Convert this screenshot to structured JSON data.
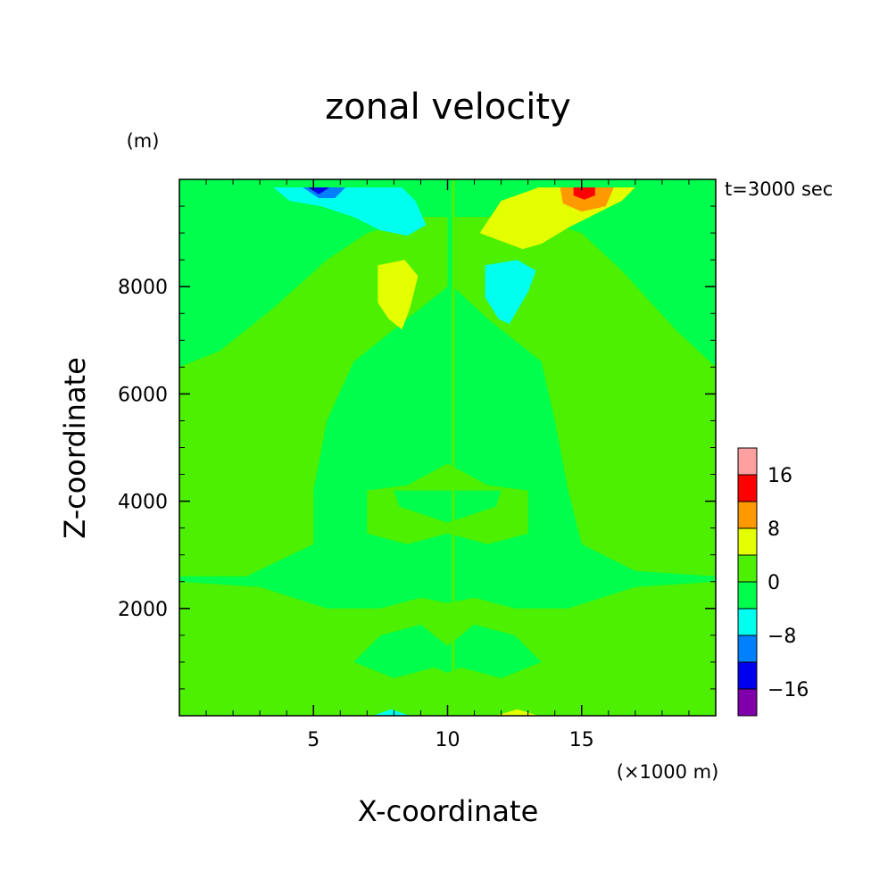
{
  "chart_data": {
    "type": "heatmap",
    "title": "zonal velocity",
    "xlabel": "X-coordinate",
    "ylabel": "Z-coordinate",
    "x_unit": "(×1000 m)",
    "y_unit": "(m)",
    "time_label": "t=3000 sec",
    "xlim": [
      0,
      20
    ],
    "ylim": [
      0,
      10000
    ],
    "x_ticks": [
      5,
      10,
      15
    ],
    "y_ticks": [
      2000,
      4000,
      6000,
      8000
    ],
    "x_tick_labels": [
      "5",
      "10",
      "15"
    ],
    "y_tick_labels": [
      "2000",
      "4000",
      "6000",
      "8000"
    ],
    "background_color": "#00ff4c",
    "colorbar": {
      "levels": [
        {
          "range": [
            -24,
            -16
          ],
          "color": "#7f00aa"
        },
        {
          "range": [
            -16,
            -12
          ],
          "color": "#0000ee"
        },
        {
          "range": [
            -12,
            -8
          ],
          "color": "#0080ff"
        },
        {
          "range": [
            -8,
            -4
          ],
          "color": "#00ffee"
        },
        {
          "range": [
            -4,
            0
          ],
          "color": "#00ff4c"
        },
        {
          "range": [
            0,
            4
          ],
          "color": "#4cf000"
        },
        {
          "range": [
            4,
            8
          ],
          "color": "#e4ff00"
        },
        {
          "range": [
            8,
            12
          ],
          "color": "#ff9900"
        },
        {
          "range": [
            12,
            16
          ],
          "color": "#ff0000"
        },
        {
          "range": [
            16,
            24
          ],
          "color": "#ffa0a0"
        }
      ],
      "tick_labels": [
        {
          "value": -16,
          "label": "−16"
        },
        {
          "value": -8,
          "label": "−8"
        },
        {
          "value": 0,
          "label": "0"
        },
        {
          "value": 8,
          "label": "8"
        },
        {
          "value": 16,
          "label": "16"
        }
      ]
    },
    "regions": [
      {
        "value": 2,
        "color": "#4cf000",
        "points": [
          [
            0,
            6500
          ],
          [
            1.5,
            6800
          ],
          [
            3.5,
            7600
          ],
          [
            5.5,
            8500
          ],
          [
            7,
            9000
          ],
          [
            9,
            9300
          ],
          [
            10,
            9300
          ],
          [
            10,
            8000
          ],
          [
            8.5,
            7400
          ],
          [
            6.5,
            6600
          ],
          [
            5.5,
            5500
          ],
          [
            5,
            4200
          ],
          [
            5,
            3200
          ],
          [
            2.5,
            2600
          ],
          [
            0,
            2600
          ]
        ]
      },
      {
        "value": 2,
        "color": "#4cf000",
        "points": [
          [
            10.2,
            9300
          ],
          [
            13,
            9300
          ],
          [
            15,
            9000
          ],
          [
            16.5,
            8300
          ],
          [
            18.5,
            7200
          ],
          [
            20,
            6500
          ],
          [
            20,
            2600
          ],
          [
            17,
            2700
          ],
          [
            15,
            3200
          ],
          [
            14.5,
            4200
          ],
          [
            14,
            5500
          ],
          [
            13.5,
            6600
          ],
          [
            11.5,
            7400
          ],
          [
            10.2,
            8000
          ]
        ]
      },
      {
        "value": 2,
        "color": "#4cf000",
        "points": [
          [
            0,
            2500
          ],
          [
            3,
            2400
          ],
          [
            5.5,
            2000
          ],
          [
            7.5,
            2000
          ],
          [
            9,
            2200
          ],
          [
            10,
            2100
          ],
          [
            11,
            2200
          ],
          [
            12.5,
            2000
          ],
          [
            14.5,
            2000
          ],
          [
            17,
            2400
          ],
          [
            20,
            2500
          ],
          [
            20,
            0
          ],
          [
            0,
            0
          ]
        ]
      },
      {
        "value": 2,
        "color": "#4cf000",
        "points": [
          [
            7,
            3400
          ],
          [
            8.5,
            3200
          ],
          [
            10,
            3400
          ],
          [
            11.5,
            3200
          ],
          [
            13,
            3400
          ],
          [
            13,
            4200
          ],
          [
            11.5,
            4300
          ],
          [
            10,
            4700
          ],
          [
            8.5,
            4300
          ],
          [
            7,
            4200
          ]
        ]
      },
      {
        "value": -2,
        "color": "#00ff4c",
        "points": [
          [
            6.5,
            1000
          ],
          [
            8,
            700
          ],
          [
            9.5,
            900
          ],
          [
            10,
            800
          ],
          [
            10.5,
            900
          ],
          [
            12,
            700
          ],
          [
            13.5,
            1000
          ],
          [
            12.5,
            1500
          ],
          [
            11,
            1700
          ],
          [
            10,
            1300
          ],
          [
            9,
            1700
          ],
          [
            7.5,
            1500
          ]
        ]
      },
      {
        "value": -2,
        "color": "#00ff4c",
        "points": [
          [
            6.8,
            5000
          ],
          [
            7.5,
            6200
          ],
          [
            8.8,
            7100
          ],
          [
            10,
            7000
          ],
          [
            11.2,
            7100
          ],
          [
            12.5,
            6200
          ],
          [
            13.2,
            5000
          ],
          [
            12,
            5000
          ],
          [
            11,
            5600
          ],
          [
            10,
            5200
          ],
          [
            9,
            5600
          ],
          [
            8,
            5000
          ]
        ]
      },
      {
        "value": -2,
        "color": "#00ff4c",
        "points": [
          [
            8.2,
            3900
          ],
          [
            10,
            3600
          ],
          [
            11.8,
            3900
          ],
          [
            12,
            4200
          ],
          [
            10,
            4200
          ],
          [
            8,
            4200
          ]
        ]
      },
      {
        "value": 5,
        "color": "#e4ff00",
        "points": [
          [
            7.4,
            8400
          ],
          [
            8.4,
            8500
          ],
          [
            8.9,
            8200
          ],
          [
            8.6,
            7600
          ],
          [
            8.3,
            7200
          ],
          [
            7.8,
            7400
          ],
          [
            7.4,
            7700
          ]
        ]
      },
      {
        "value": 5,
        "color": "#e4ff00",
        "points": [
          [
            11.2,
            9000
          ],
          [
            12.8,
            8700
          ],
          [
            13.5,
            8800
          ],
          [
            14.5,
            9100
          ],
          [
            16.5,
            9600
          ],
          [
            17,
            9850
          ],
          [
            13.4,
            9850
          ],
          [
            12,
            9600
          ]
        ]
      },
      {
        "value": 5,
        "color": "#e4ff00",
        "points": [
          [
            11.8,
            0
          ],
          [
            12.6,
            120
          ],
          [
            13.4,
            0
          ]
        ]
      },
      {
        "value": 10,
        "color": "#ff9900",
        "points": [
          [
            14.3,
            9550
          ],
          [
            15,
            9400
          ],
          [
            15.9,
            9500
          ],
          [
            16.2,
            9850
          ],
          [
            14.2,
            9850
          ]
        ]
      },
      {
        "value": 14,
        "color": "#ff0000",
        "points": [
          [
            14.7,
            9700
          ],
          [
            15.1,
            9620
          ],
          [
            15.5,
            9700
          ],
          [
            15.5,
            9850
          ],
          [
            14.7,
            9850
          ]
        ]
      },
      {
        "value": -5,
        "color": "#00ffee",
        "points": [
          [
            3.5,
            9850
          ],
          [
            4.1,
            9600
          ],
          [
            5.3,
            9500
          ],
          [
            6.5,
            9300
          ],
          [
            7.5,
            9050
          ],
          [
            8.5,
            8950
          ],
          [
            9.2,
            9150
          ],
          [
            8.8,
            9600
          ],
          [
            8.3,
            9850
          ]
        ]
      },
      {
        "value": -5,
        "color": "#00ffee",
        "points": [
          [
            11.4,
            8400
          ],
          [
            12.6,
            8500
          ],
          [
            13.3,
            8300
          ],
          [
            13,
            7900
          ],
          [
            12.3,
            7300
          ],
          [
            11.9,
            7400
          ],
          [
            11.4,
            7800
          ]
        ]
      },
      {
        "value": -5,
        "color": "#00ffee",
        "points": [
          [
            7.2,
            0
          ],
          [
            7.9,
            120
          ],
          [
            8.6,
            0
          ]
        ]
      },
      {
        "value": -10,
        "color": "#0080ff",
        "points": [
          [
            4.6,
            9850
          ],
          [
            5.2,
            9650
          ],
          [
            5.8,
            9650
          ],
          [
            6.2,
            9850
          ]
        ]
      },
      {
        "value": -14,
        "color": "#0000ee",
        "points": [
          [
            4.8,
            9850
          ],
          [
            5.2,
            9720
          ],
          [
            5.6,
            9850
          ]
        ]
      }
    ]
  }
}
